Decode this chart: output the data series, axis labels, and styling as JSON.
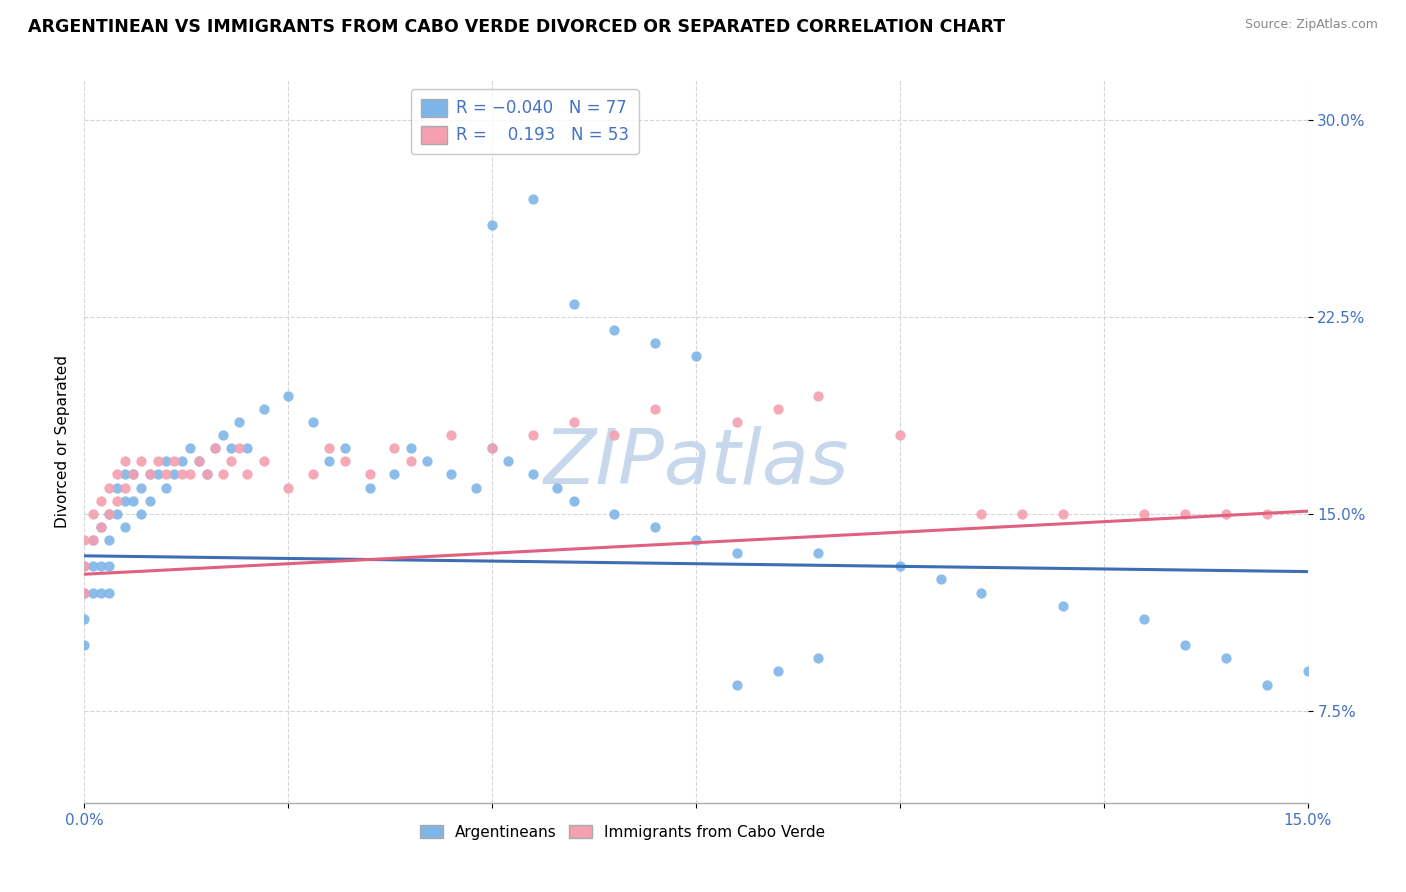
{
  "title": "ARGENTINEAN VS IMMIGRANTS FROM CABO VERDE DIVORCED OR SEPARATED CORRELATION CHART",
  "source_text": "Source: ZipAtlas.com",
  "ylabel": "Divorced or Separated",
  "watermark": "ZIPatlas",
  "xlim": [
    0.0,
    0.15
  ],
  "ylim": [
    0.04,
    0.315
  ],
  "xticks": [
    0.0,
    0.025,
    0.05,
    0.075,
    0.1,
    0.125,
    0.15
  ],
  "xticklabels": [
    "0.0%",
    "",
    "",
    "",
    "",
    "",
    "15.0%"
  ],
  "yticks": [
    0.075,
    0.15,
    0.225,
    0.3
  ],
  "yticklabels": [
    "7.5%",
    "15.0%",
    "22.5%",
    "30.0%"
  ],
  "blue_color": "#7EB5E8",
  "blue_line": "#3D6DB5",
  "pink_color": "#F4A0B0",
  "pink_line": "#E06080",
  "title_fontsize": 12.5,
  "axis_fontsize": 11,
  "tick_fontsize": 11,
  "background_color": "#FFFFFF",
  "grid_color": "#CCCCCC",
  "watermark_color": "#C8D8EC",
  "watermark_fontsize": 55,
  "blue_x": [
    0.0,
    0.0,
    0.0,
    0.0,
    0.001,
    0.001,
    0.001,
    0.002,
    0.002,
    0.002,
    0.003,
    0.003,
    0.003,
    0.003,
    0.004,
    0.004,
    0.005,
    0.005,
    0.005,
    0.006,
    0.006,
    0.007,
    0.007,
    0.008,
    0.008,
    0.009,
    0.01,
    0.01,
    0.011,
    0.012,
    0.013,
    0.014,
    0.015,
    0.016,
    0.017,
    0.018,
    0.019,
    0.02,
    0.022,
    0.025,
    0.028,
    0.03,
    0.032,
    0.035,
    0.038,
    0.04,
    0.042,
    0.045,
    0.048,
    0.05,
    0.052,
    0.055,
    0.058,
    0.06,
    0.065,
    0.07,
    0.075,
    0.08,
    0.09,
    0.1,
    0.105,
    0.11,
    0.12,
    0.13,
    0.135,
    0.14,
    0.145,
    0.15,
    0.05,
    0.055,
    0.06,
    0.065,
    0.07,
    0.075,
    0.08,
    0.085,
    0.09
  ],
  "blue_y": [
    0.13,
    0.12,
    0.11,
    0.1,
    0.14,
    0.13,
    0.12,
    0.145,
    0.13,
    0.12,
    0.15,
    0.14,
    0.13,
    0.12,
    0.16,
    0.15,
    0.165,
    0.155,
    0.145,
    0.165,
    0.155,
    0.16,
    0.15,
    0.165,
    0.155,
    0.165,
    0.17,
    0.16,
    0.165,
    0.17,
    0.175,
    0.17,
    0.165,
    0.175,
    0.18,
    0.175,
    0.185,
    0.175,
    0.19,
    0.195,
    0.185,
    0.17,
    0.175,
    0.16,
    0.165,
    0.175,
    0.17,
    0.165,
    0.16,
    0.175,
    0.17,
    0.165,
    0.16,
    0.155,
    0.15,
    0.145,
    0.14,
    0.135,
    0.135,
    0.13,
    0.125,
    0.12,
    0.115,
    0.11,
    0.1,
    0.095,
    0.085,
    0.09,
    0.26,
    0.27,
    0.23,
    0.22,
    0.215,
    0.21,
    0.085,
    0.09,
    0.095
  ],
  "pink_x": [
    0.0,
    0.0,
    0.0,
    0.001,
    0.001,
    0.002,
    0.002,
    0.003,
    0.003,
    0.004,
    0.004,
    0.005,
    0.005,
    0.006,
    0.007,
    0.008,
    0.009,
    0.01,
    0.011,
    0.012,
    0.013,
    0.014,
    0.015,
    0.016,
    0.017,
    0.018,
    0.019,
    0.02,
    0.022,
    0.025,
    0.028,
    0.03,
    0.032,
    0.035,
    0.038,
    0.04,
    0.045,
    0.05,
    0.055,
    0.06,
    0.065,
    0.07,
    0.08,
    0.085,
    0.09,
    0.1,
    0.11,
    0.115,
    0.12,
    0.13,
    0.135,
    0.14,
    0.145
  ],
  "pink_y": [
    0.14,
    0.13,
    0.12,
    0.15,
    0.14,
    0.155,
    0.145,
    0.16,
    0.15,
    0.165,
    0.155,
    0.17,
    0.16,
    0.165,
    0.17,
    0.165,
    0.17,
    0.165,
    0.17,
    0.165,
    0.165,
    0.17,
    0.165,
    0.175,
    0.165,
    0.17,
    0.175,
    0.165,
    0.17,
    0.16,
    0.165,
    0.175,
    0.17,
    0.165,
    0.175,
    0.17,
    0.18,
    0.175,
    0.18,
    0.185,
    0.18,
    0.19,
    0.185,
    0.19,
    0.195,
    0.18,
    0.15,
    0.15,
    0.15,
    0.15,
    0.15,
    0.15,
    0.15
  ],
  "blue_trend_x": [
    0.0,
    0.15
  ],
  "blue_trend_y": [
    0.134,
    0.128
  ],
  "pink_trend_x": [
    0.0,
    0.15
  ],
  "pink_trend_y": [
    0.127,
    0.151
  ]
}
